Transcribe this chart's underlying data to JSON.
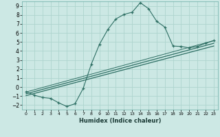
{
  "title": "",
  "xlabel": "Humidex (Indice chaleur)",
  "ylabel": "",
  "bg_color": "#cce8e4",
  "grid_color": "#aed4ce",
  "line_color": "#2d6e63",
  "xlim": [
    -0.5,
    23.5
  ],
  "ylim": [
    -2.5,
    9.5
  ],
  "xticks": [
    0,
    1,
    2,
    3,
    4,
    5,
    6,
    7,
    8,
    9,
    10,
    11,
    12,
    13,
    14,
    15,
    16,
    17,
    18,
    19,
    20,
    21,
    22,
    23
  ],
  "yticks": [
    -2,
    -1,
    0,
    1,
    2,
    3,
    4,
    5,
    6,
    7,
    8,
    9
  ],
  "curve_x": [
    0,
    1,
    2,
    3,
    4,
    5,
    6,
    7,
    8,
    9,
    10,
    11,
    12,
    13,
    14,
    15,
    16,
    17,
    18,
    19,
    20,
    21,
    22,
    23
  ],
  "curve_y": [
    -0.5,
    -0.9,
    -1.15,
    -1.25,
    -1.75,
    -2.15,
    -1.85,
    -0.15,
    2.55,
    4.75,
    6.35,
    7.55,
    8.05,
    8.3,
    9.35,
    8.7,
    7.3,
    6.65,
    4.55,
    4.5,
    4.35,
    4.5,
    4.85,
    5.15
  ],
  "line1_x": [
    0,
    23
  ],
  "line1_y": [
    -0.95,
    4.55
  ],
  "line2_x": [
    0,
    23
  ],
  "line2_y": [
    -0.75,
    4.85
  ],
  "line3_x": [
    0,
    23
  ],
  "line3_y": [
    -0.55,
    5.15
  ]
}
